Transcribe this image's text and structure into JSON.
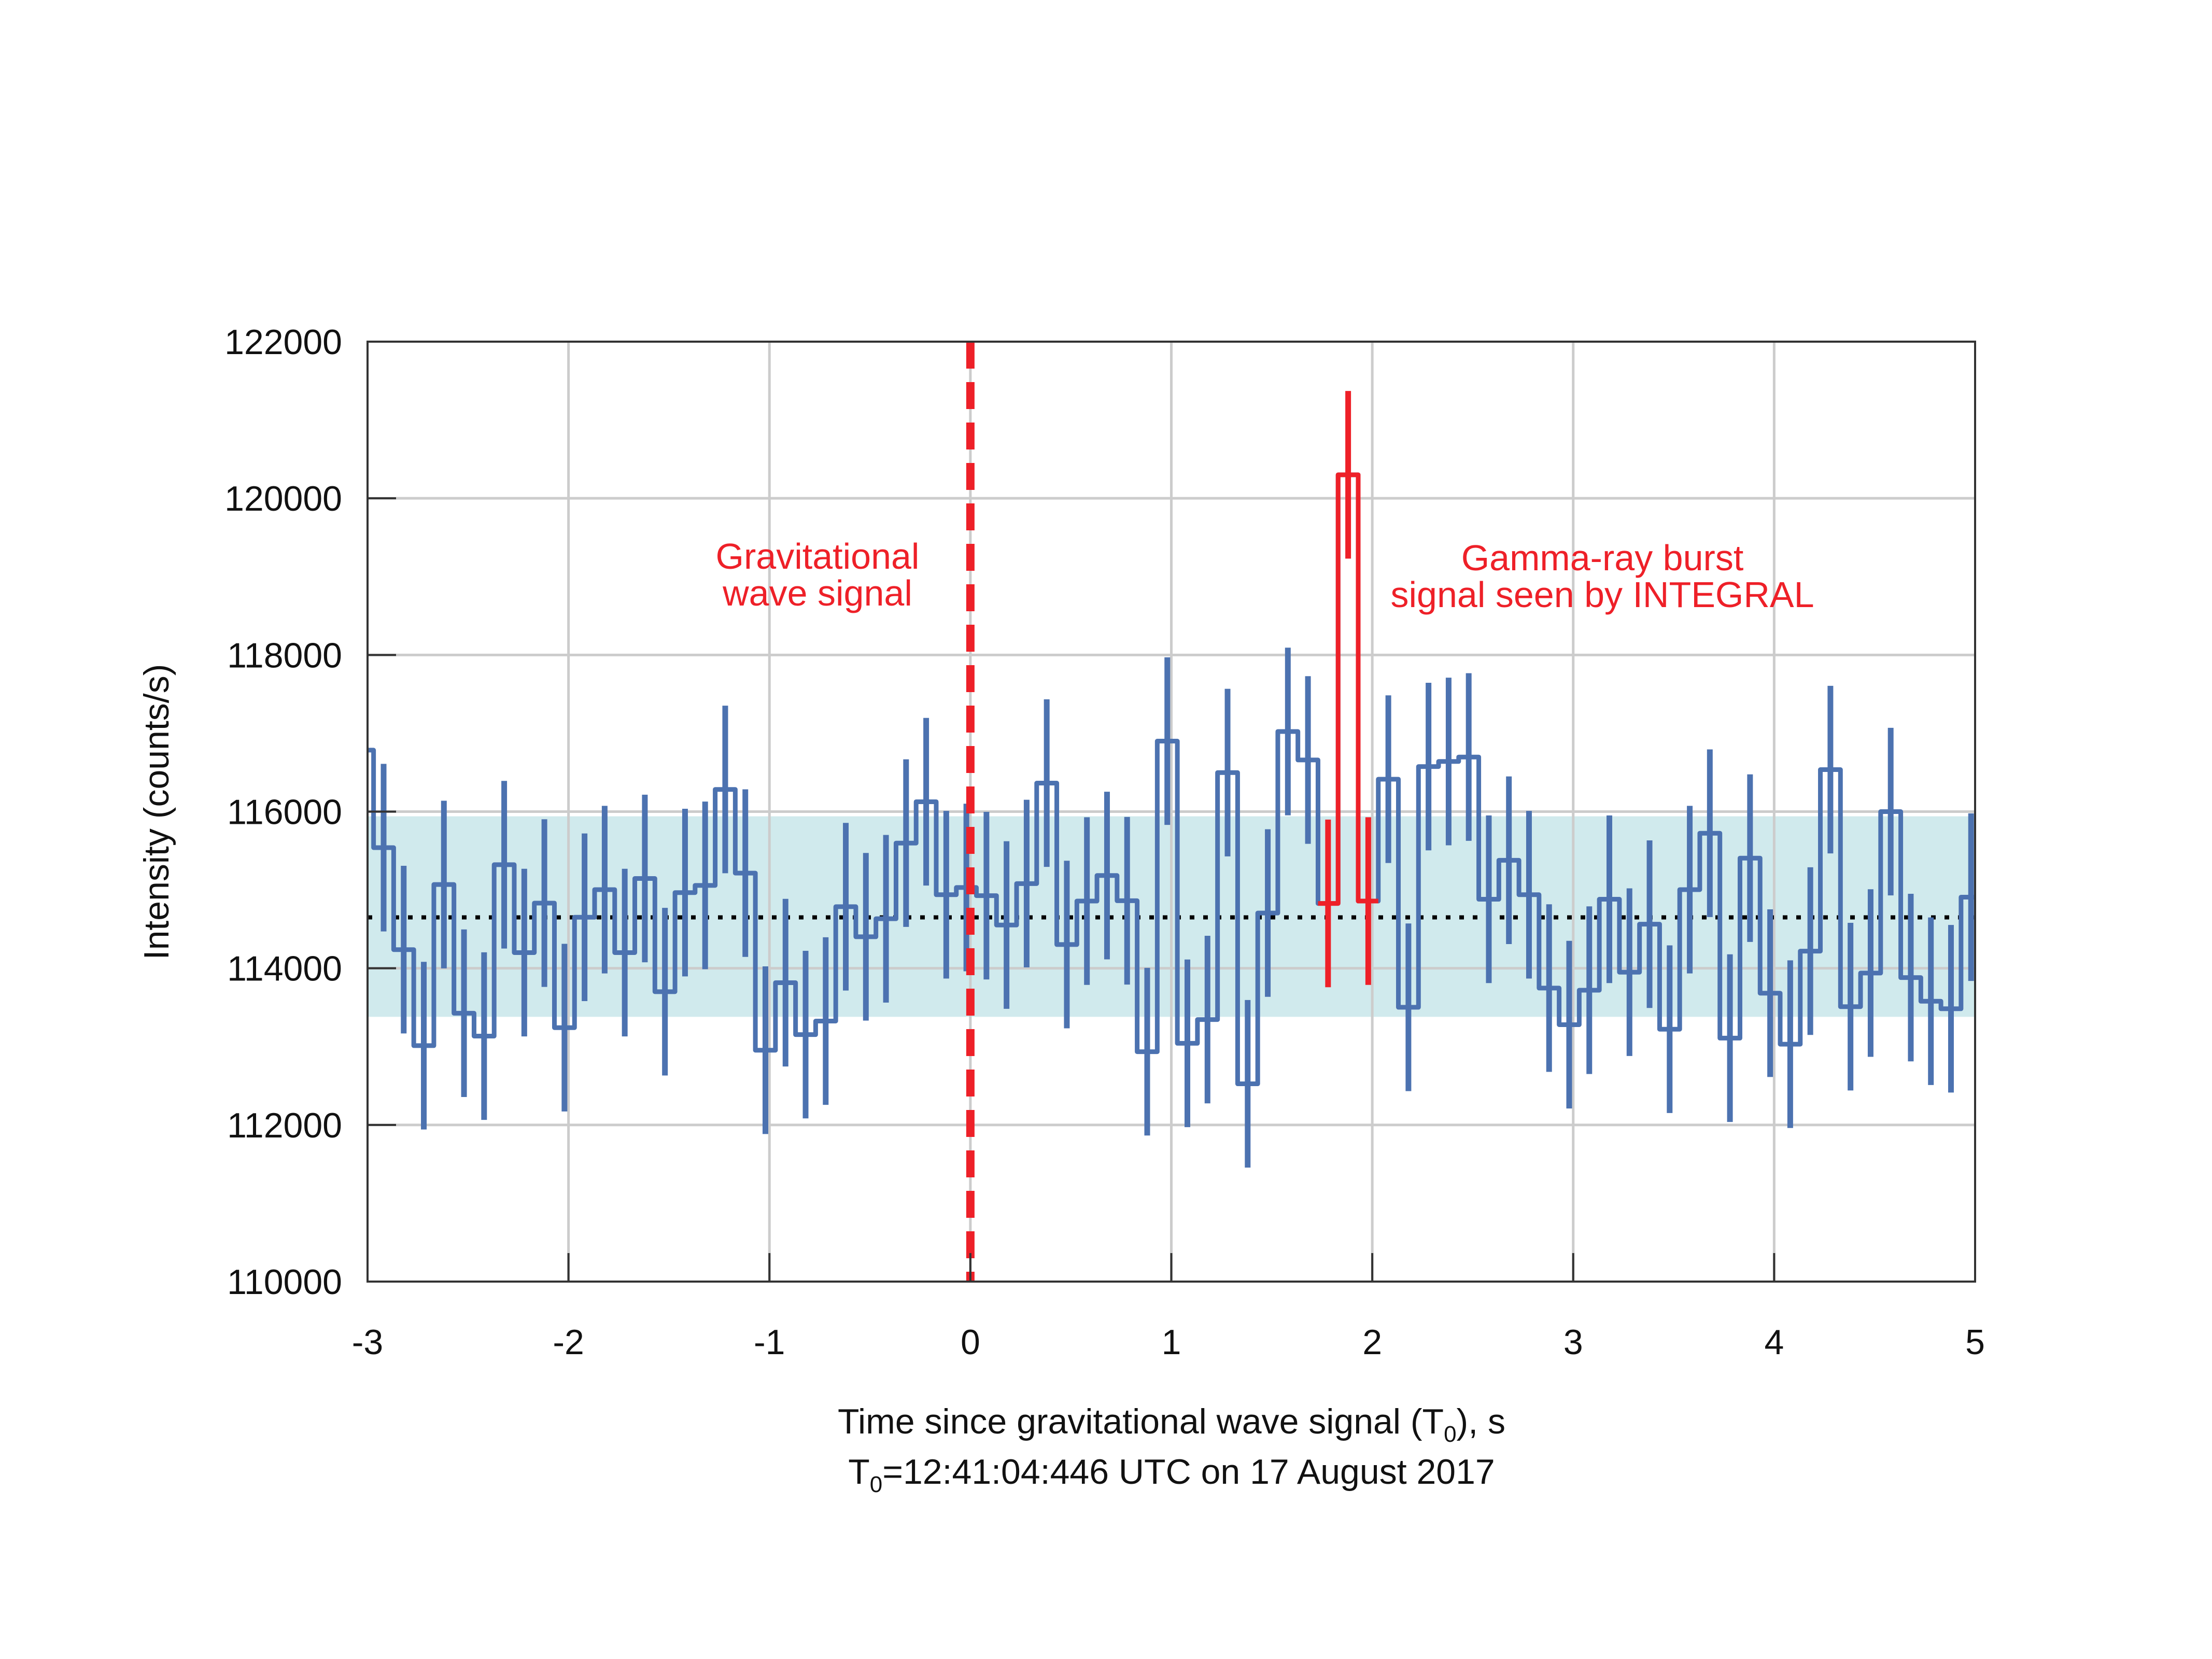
{
  "chart_data": {
    "type": "step-histogram",
    "title": "",
    "xlabel": "Time since gravitational wave signal (T0), s",
    "xlabel_parts": {
      "main": "Time since gravitational wave signal (T",
      "sub": "0",
      "tail": "), s"
    },
    "xlabel_line2_parts": {
      "main": "T",
      "sub": "0",
      "tail": "=12:41:04:446 UTC on 17 August 2017"
    },
    "ylabel": "Intensity (counts/s)",
    "xlim": [
      -3,
      5
    ],
    "ylim": [
      110000,
      122000
    ],
    "xticks": [
      -3,
      -2,
      -1,
      0,
      1,
      2,
      3,
      4,
      5
    ],
    "xtick_labels": [
      "-3",
      "-2",
      "-1",
      "0",
      "1",
      "2",
      "3",
      "4",
      "5"
    ],
    "yticks": [
      110000,
      112000,
      114000,
      116000,
      118000,
      120000,
      122000
    ],
    "ytick_labels": [
      "110000",
      "112000",
      "114000",
      "116000",
      "118000",
      "120000",
      "122000"
    ],
    "grid": true,
    "bin_first_center": -3.02,
    "bin_width": 0.1,
    "error": 1070,
    "values": [
      116785,
      115540,
      114238,
      113012,
      115069,
      113426,
      113134,
      115322,
      114200,
      114832,
      113242,
      114651,
      115004,
      114200,
      115146,
      113701,
      114966,
      115058,
      116283,
      115215,
      112954,
      113816,
      113153,
      113326,
      114786,
      114402,
      114632,
      115598,
      116126,
      114939,
      115031,
      114927,
      114552,
      115081,
      116364,
      114303,
      114858,
      115184,
      114862,
      112935,
      116900,
      113042,
      113345,
      116498,
      112525,
      114705,
      117023,
      116659,
      114828,
      120300,
      114858,
      116414,
      113502,
      116575,
      116640,
      116697,
      114881,
      115379,
      114939,
      113747,
      113280,
      113720,
      114881,
      113950,
      114563,
      113222,
      115004,
      115724,
      113108,
      115406,
      113682,
      113031,
      114219,
      116536,
      113510,
      113939,
      116000,
      113881,
      113579,
      113483,
      114908
    ],
    "highlight_indices": [
      48,
      49,
      50
    ],
    "mean_level": 114650,
    "band": [
      113380,
      115940
    ],
    "gw_time": 0,
    "annotations": {
      "gw_line1": "Gravitational",
      "gw_line2": "wave signal",
      "grb_line1": "Gamma-ray burst",
      "grb_line2": "signal seen by INTEGRAL"
    },
    "colors": {
      "series": "#4c72b0",
      "highlight": "#ee2028",
      "band": "#d0eaed",
      "grid": "#cccccc",
      "mean": "#000000"
    }
  }
}
